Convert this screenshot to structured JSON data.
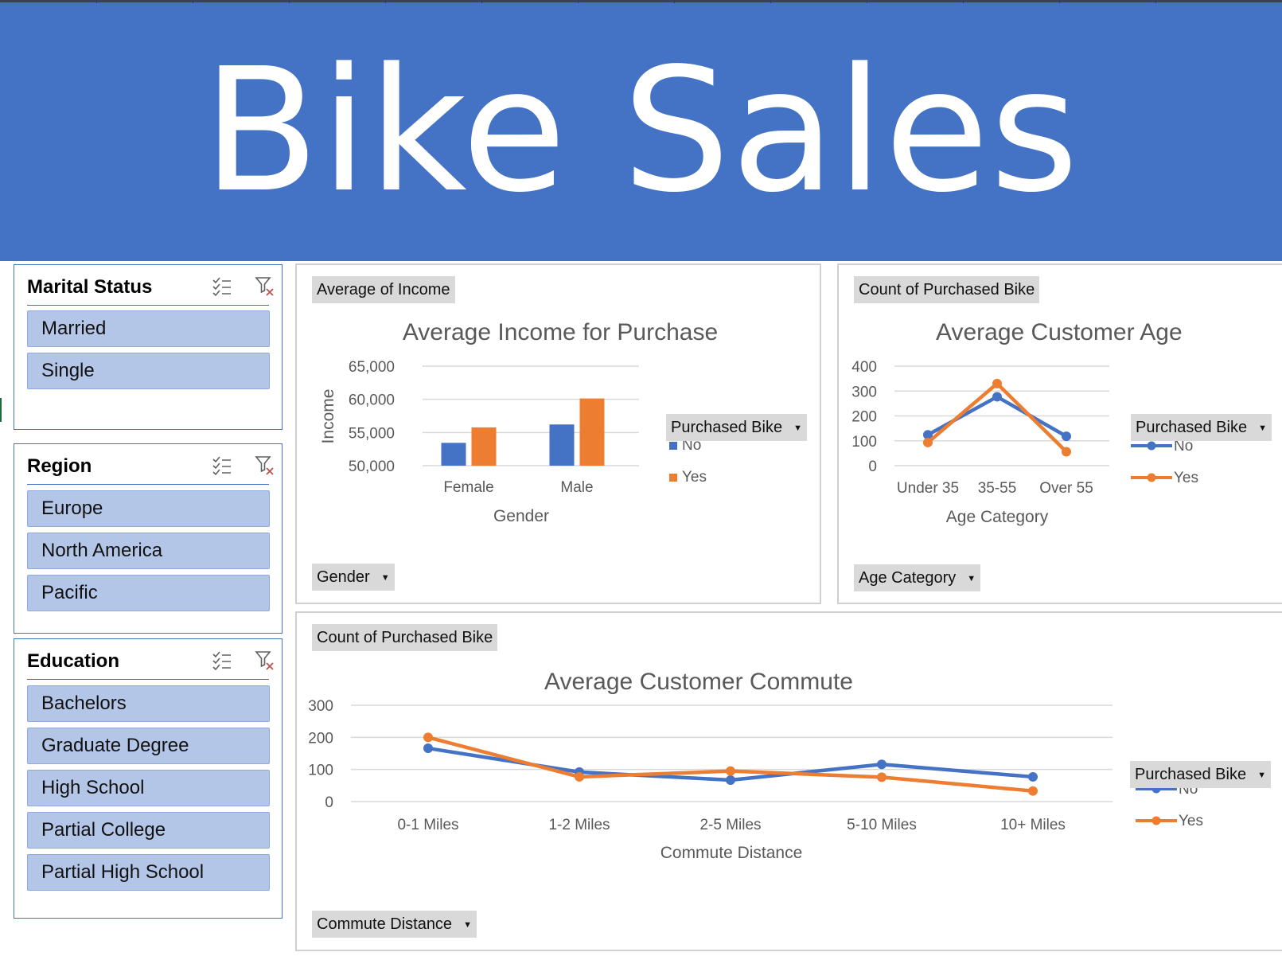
{
  "banner": {
    "title": "Bike Sales",
    "background": "#4472C4"
  },
  "slicers": [
    {
      "title": "Marital Status",
      "items": [
        "Married",
        "Single"
      ]
    },
    {
      "title": "Region",
      "items": [
        "Europe",
        "North America",
        "Pacific"
      ]
    },
    {
      "title": "Education",
      "items": [
        "Bachelors",
        "Graduate Degree",
        "High School",
        "Partial College",
        "Partial High School"
      ]
    }
  ],
  "slicer_icons": {
    "multiselect": "multi-select-icon",
    "clear": "clear-filter-icon"
  },
  "colors": {
    "no": "#4472C4",
    "yes": "#ED7D31",
    "slicer_item": "#B4C6E7"
  },
  "panels": {
    "income": {
      "value_field": "Average of Income",
      "axis_field": "Gender",
      "legend_field": "Purchased Bike"
    },
    "age": {
      "value_field": "Count of Purchased Bike",
      "axis_field": "Age Category",
      "legend_field": "Purchased Bike"
    },
    "commute": {
      "value_field": "Count of Purchased Bike",
      "axis_field": "Commute Distance",
      "legend_field": "Purchased Bike"
    }
  },
  "chart_data": [
    {
      "type": "bar",
      "title": "Average Income for Purchase",
      "xlabel": "Gender",
      "ylabel": "Income",
      "categories": [
        "Female",
        "Male"
      ],
      "series": [
        {
          "name": "No",
          "values": [
            53440,
            56209
          ]
        },
        {
          "name": "Yes",
          "values": [
            55774,
            60124
          ]
        }
      ],
      "ylim": [
        50000,
        65000
      ],
      "yticks": [
        "50,000",
        "55,000",
        "60,000",
        "65,000"
      ],
      "grid": true,
      "legend": "right"
    },
    {
      "type": "line",
      "title": "Average Customer Age",
      "xlabel": "Age Category",
      "ylabel": "",
      "categories": [
        "Under 35",
        "35-55",
        "Over 55"
      ],
      "series": [
        {
          "name": "No",
          "values": [
            124,
            277,
            118
          ]
        },
        {
          "name": "Yes",
          "values": [
            93,
            330,
            56
          ]
        }
      ],
      "ylim": [
        0,
        400
      ],
      "yticks": [
        "0",
        "100",
        "200",
        "300",
        "400"
      ],
      "grid": true,
      "legend": "right"
    },
    {
      "type": "line",
      "title": "Average Customer Commute",
      "xlabel": "Commute Distance",
      "ylabel": "",
      "categories": [
        "0-1 Miles",
        "1-2 Miles",
        "2-5 Miles",
        "5-10 Miles",
        "10+ Miles"
      ],
      "series": [
        {
          "name": "No",
          "values": [
            166,
            92,
            67,
            116,
            77
          ]
        },
        {
          "name": "Yes",
          "values": [
            200,
            77,
            95,
            76,
            33
          ]
        }
      ],
      "ylim": [
        0,
        300
      ],
      "yticks": [
        "0",
        "100",
        "200",
        "300"
      ],
      "grid": true,
      "legend": "right"
    }
  ]
}
